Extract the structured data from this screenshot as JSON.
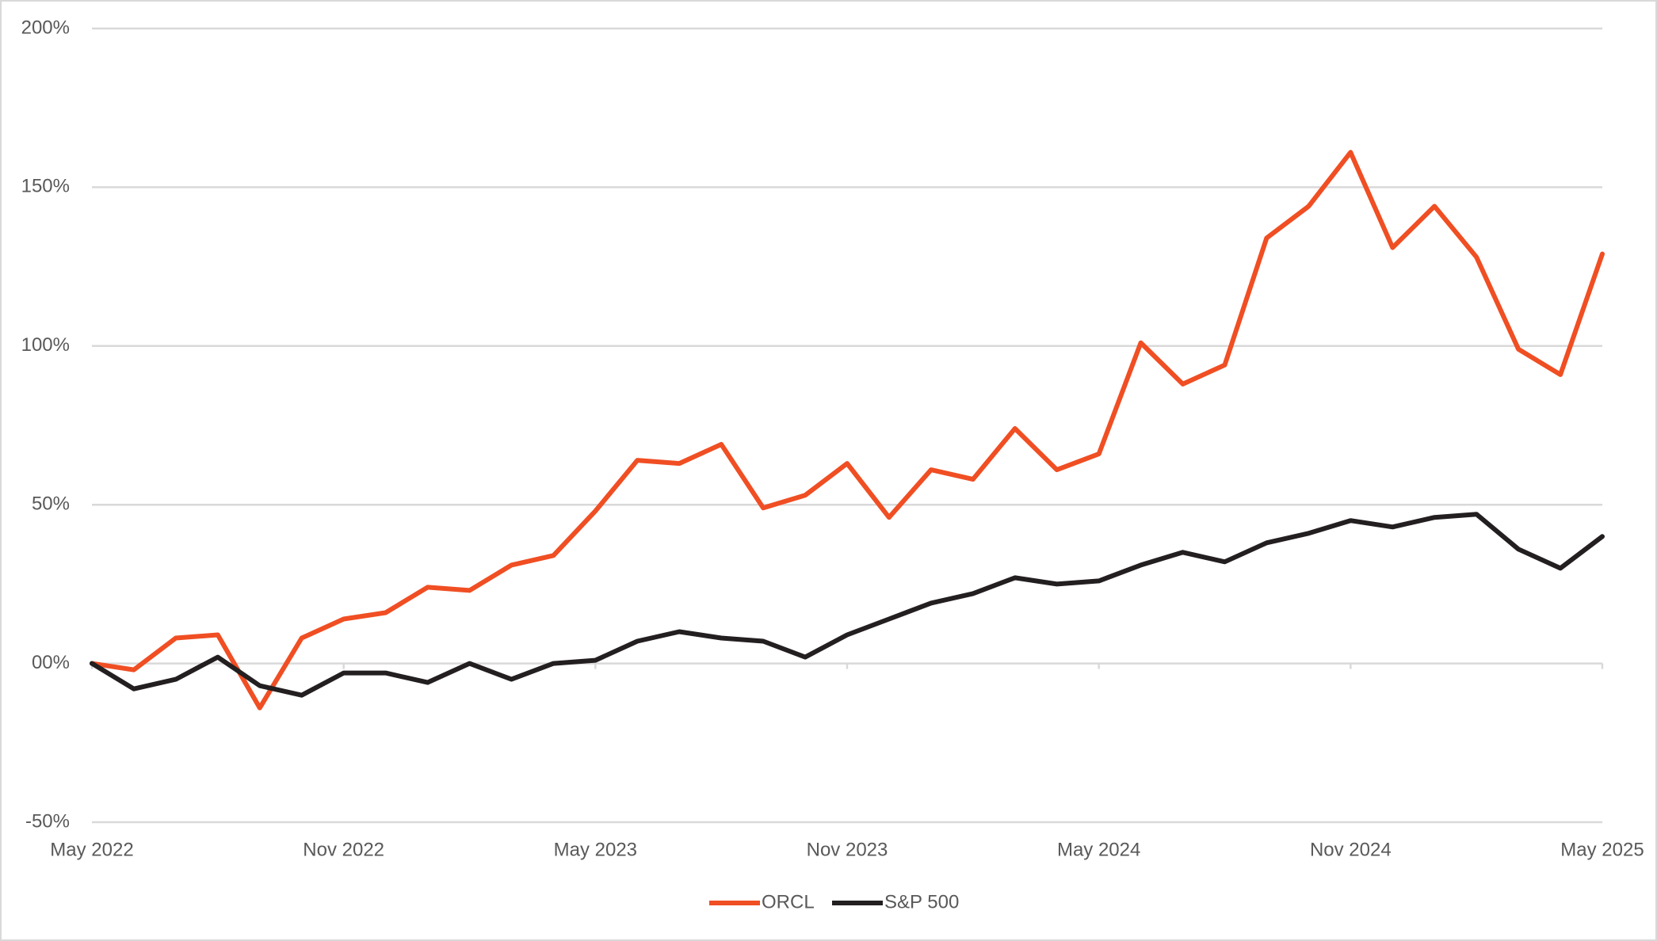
{
  "chart_data": {
    "type": "line",
    "categories": [
      "May 2022",
      null,
      null,
      null,
      null,
      null,
      "Nov 2022",
      null,
      null,
      null,
      null,
      null,
      "May 2023",
      null,
      null,
      null,
      null,
      null,
      "Nov 2023",
      null,
      null,
      null,
      null,
      null,
      "May 2024",
      null,
      null,
      null,
      null,
      null,
      "Nov 2024",
      null,
      null,
      null,
      null,
      null,
      "May 2025"
    ],
    "series": [
      {
        "name": "ORCL",
        "color": "#f04e23",
        "values": [
          0,
          -2,
          8,
          9,
          -14,
          8,
          14,
          16,
          24,
          23,
          31,
          34,
          48,
          64,
          63,
          69,
          49,
          53,
          63,
          46,
          61,
          58,
          74,
          61,
          66,
          101,
          88,
          94,
          134,
          144,
          161,
          131,
          144,
          128,
          99,
          91,
          129
        ]
      },
      {
        "name": "S&P 500",
        "color": "#231f20",
        "values": [
          0,
          -8,
          -5,
          2,
          -7,
          -10,
          -3,
          -3,
          -6,
          0,
          -5,
          0,
          1,
          7,
          10,
          8,
          7,
          2,
          9,
          14,
          19,
          22,
          27,
          25,
          26,
          31,
          35,
          32,
          38,
          41,
          45,
          43,
          46,
          47,
          36,
          30,
          40
        ]
      }
    ],
    "ylim": [
      -50,
      200
    ],
    "yticks": [
      {
        "value": -50,
        "label": "-50%"
      },
      {
        "value": 0,
        "label": "00%"
      },
      {
        "value": 50,
        "label": "50%"
      },
      {
        "value": 100,
        "label": "100%"
      },
      {
        "value": 150,
        "label": "150%"
      },
      {
        "value": 200,
        "label": "200%"
      }
    ],
    "grid": true,
    "legend": "bottom"
  }
}
